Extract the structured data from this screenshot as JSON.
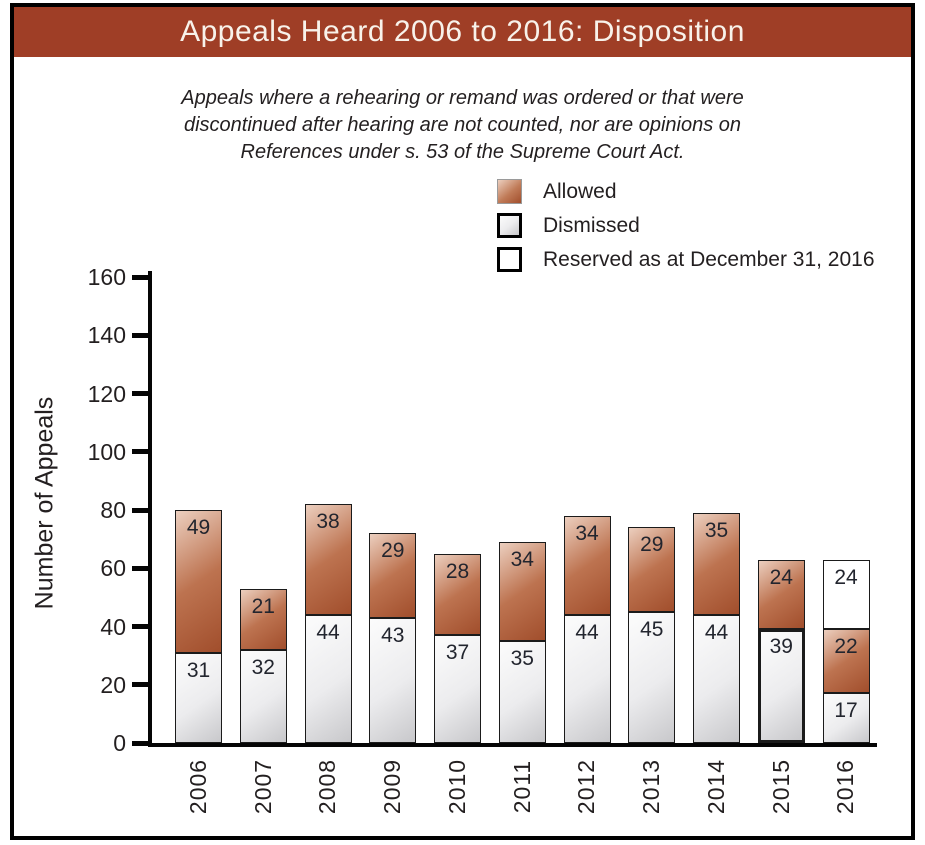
{
  "chart_data": {
    "type": "bar",
    "stacked": true,
    "title": "Appeals Heard 2006 to 2016: Disposition",
    "note_lines": [
      "Appeals where a rehearing or remand was ordered or that were",
      "discontinued after hearing are not counted, nor are opinions on",
      "References under s. 53 of the Supreme Court Act."
    ],
    "ylabel": "Number of Appeals",
    "xlabel": "",
    "ylim": [
      0,
      160
    ],
    "ytick_step": 20,
    "grid": false,
    "legend_position": "top-center",
    "categories": [
      "2006",
      "2007",
      "2008",
      "2009",
      "2010",
      "2011",
      "2012",
      "2013",
      "2014",
      "2015",
      "2016"
    ],
    "series": [
      {
        "name": "Dismissed",
        "key": "dismissed",
        "values": [
          31,
          32,
          44,
          43,
          37,
          35,
          44,
          45,
          44,
          39,
          17
        ]
      },
      {
        "name": "Allowed",
        "key": "allowed",
        "values": [
          49,
          21,
          38,
          29,
          28,
          34,
          34,
          29,
          35,
          24,
          22
        ]
      },
      {
        "name": "Reserved as at December 31, 2016",
        "key": "reserved",
        "values": [
          0,
          0,
          0,
          0,
          0,
          0,
          0,
          0,
          0,
          0,
          24
        ]
      }
    ],
    "bar_value_labels": true,
    "emphasis": {
      "category": "2015",
      "series_key": "dismissed"
    }
  },
  "colors": {
    "banner_red": "#9F3E26",
    "title_text": "#F8F2EA",
    "allowed_light": "#ECCFBF",
    "allowed_dark": "#A14E2C",
    "dismissed_light": "#FCFCFC",
    "dismissed_dark": "#C8C8CB",
    "reserved_fill": "#FFFFFF",
    "bar_outline": "#1B1B1B",
    "text_black": "#231F20"
  }
}
